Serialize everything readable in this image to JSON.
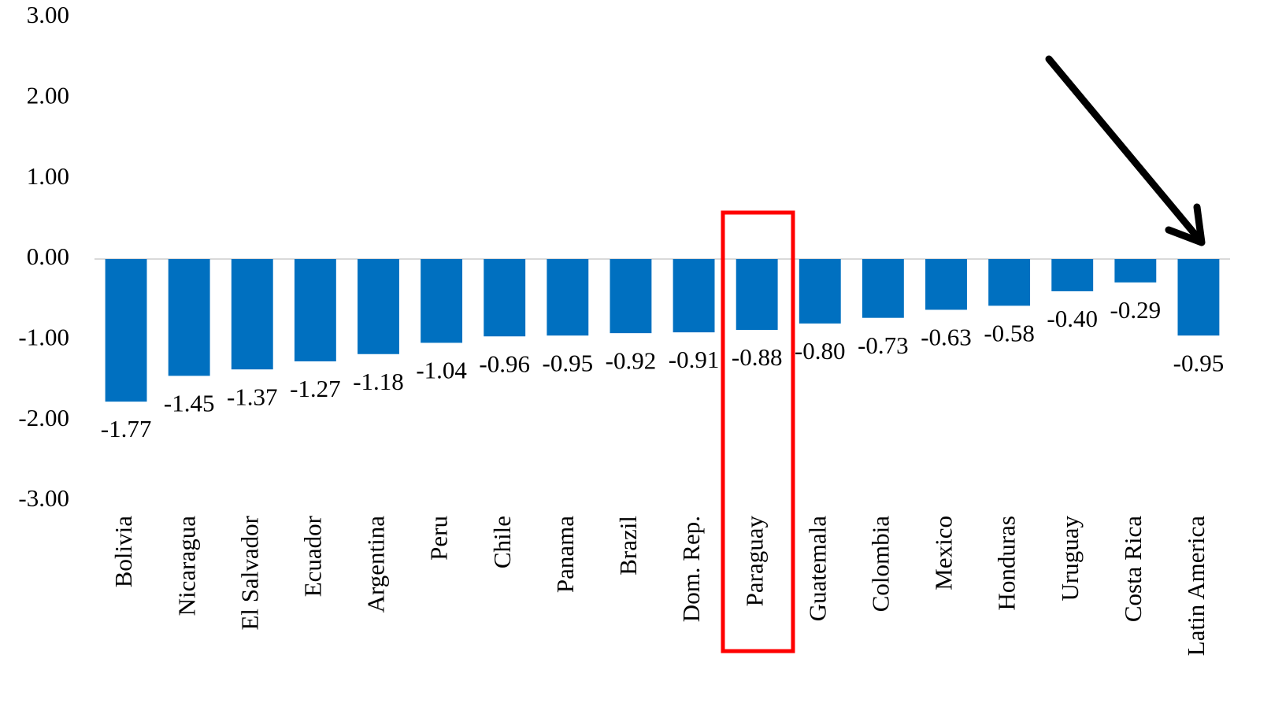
{
  "chart_data": {
    "type": "bar",
    "categories": [
      "Bolivia",
      "Nicaragua",
      "El Salvador",
      "Ecuador",
      "Argentina",
      "Peru",
      "Chile",
      "Panama",
      "Brazil",
      "Dom. Rep.",
      "Paraguay",
      "Guatemala",
      "Colombia",
      "Mexico",
      "Honduras",
      "Uruguay",
      "Costa Rica",
      "Latin America"
    ],
    "values": [
      -1.77,
      -1.45,
      -1.37,
      -1.27,
      -1.18,
      -1.04,
      -0.96,
      -0.95,
      -0.92,
      -0.91,
      -0.88,
      -0.8,
      -0.73,
      -0.63,
      -0.58,
      -0.4,
      -0.29,
      -0.95
    ],
    "value_labels": [
      "-1.77",
      "-1.45",
      "-1.37",
      "-1.27",
      "-1.18",
      "-1.04",
      "-0.96",
      "-0.95",
      "-0.92",
      "-0.91",
      "-0.88",
      "-0.80",
      "-0.73",
      "-0.63",
      "-0.58",
      "-0.40",
      "-0.29",
      "-0.95"
    ],
    "color": "#0070c0",
    "ylim": [
      -3,
      3
    ],
    "yticks": [
      {
        "value": 3,
        "label": "3.00"
      },
      {
        "value": 2,
        "label": "2.00"
      },
      {
        "value": 1,
        "label": "1.00"
      },
      {
        "value": 0,
        "label": "0.00"
      },
      {
        "value": -1,
        "label": "-1.00"
      },
      {
        "value": -2,
        "label": "-2.00"
      },
      {
        "value": -3,
        "label": "-3.00"
      }
    ],
    "grid": false
  }
}
